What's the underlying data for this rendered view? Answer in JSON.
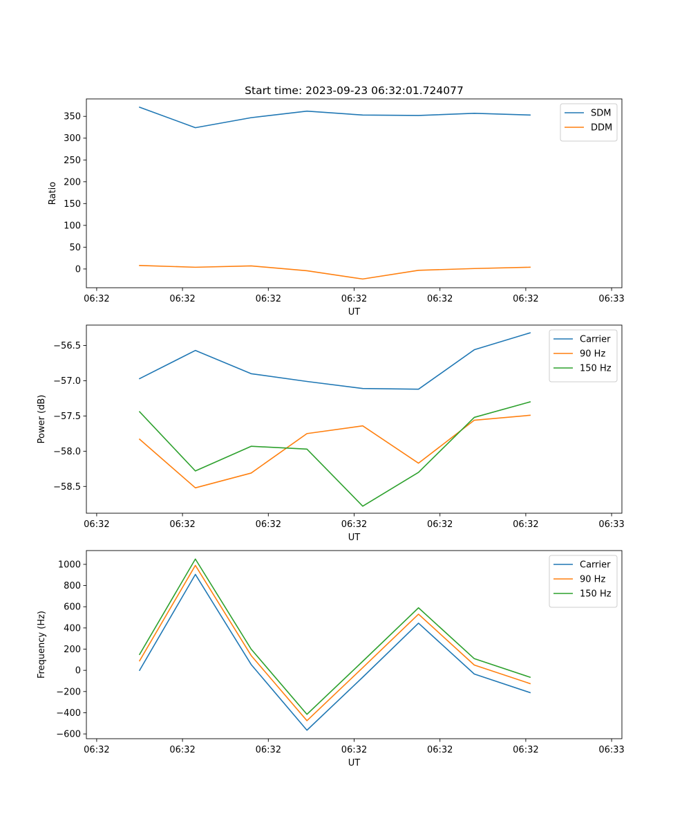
{
  "figure_title": "Start time: 2023-09-23 06:32:01.724077",
  "colors": {
    "blue": "#1f77b4",
    "orange": "#ff7f0e",
    "green": "#2ca02c"
  },
  "chart_data": [
    {
      "type": "line",
      "title": "Start time: 2023-09-23 06:32:01.724077",
      "xlabel": "UT",
      "ylabel": "Ratio",
      "legend_position": "top-right",
      "x_tick_labels": [
        "06:32",
        "06:32",
        "06:32",
        "06:32",
        "06:32",
        "06:32",
        "06:33"
      ],
      "x_ticks": [
        0,
        1,
        2,
        3,
        4,
        5,
        6
      ],
      "xlim": [
        -0.12,
        6.12
      ],
      "x": [
        0.5,
        1.15,
        1.8,
        2.45,
        3.1,
        3.75,
        4.4,
        5.05
      ],
      "ylim": [
        -43,
        390
      ],
      "y_ticks": [
        0,
        50,
        100,
        150,
        200,
        250,
        300,
        350
      ],
      "series": [
        {
          "name": "SDM",
          "color": "#1f77b4",
          "values": [
            371,
            324,
            347,
            362,
            353,
            352,
            357,
            353
          ]
        },
        {
          "name": "DDM",
          "color": "#ff7f0e",
          "values": [
            8,
            4,
            7,
            -4,
            -23,
            -3,
            1,
            4
          ]
        }
      ]
    },
    {
      "type": "line",
      "title": "",
      "xlabel": "UT",
      "ylabel": "Power (dB)",
      "legend_position": "top-right",
      "x_tick_labels": [
        "06:32",
        "06:32",
        "06:32",
        "06:32",
        "06:32",
        "06:32",
        "06:33"
      ],
      "x_ticks": [
        0,
        1,
        2,
        3,
        4,
        5,
        6
      ],
      "xlim": [
        -0.12,
        6.12
      ],
      "x": [
        0.5,
        1.15,
        1.8,
        2.45,
        3.1,
        3.75,
        4.4,
        5.05
      ],
      "ylim": [
        -58.88,
        -56.21
      ],
      "y_ticks": [
        -58.5,
        -58.0,
        -57.5,
        -57.0,
        -56.5
      ],
      "y_tick_labels": [
        "−58.5",
        "−58.0",
        "−57.5",
        "−57.0",
        "−56.5"
      ],
      "series": [
        {
          "name": "Carrier",
          "color": "#1f77b4",
          "values": [
            -56.97,
            -56.57,
            -56.9,
            -57.01,
            -57.11,
            -57.12,
            -56.56,
            -56.32
          ]
        },
        {
          "name": "90 Hz",
          "color": "#ff7f0e",
          "values": [
            -57.83,
            -58.52,
            -58.31,
            -57.75,
            -57.64,
            -58.17,
            -57.56,
            -57.49
          ]
        },
        {
          "name": "150 Hz",
          "color": "#2ca02c",
          "values": [
            -57.44,
            -58.28,
            -57.93,
            -57.97,
            -58.78,
            -58.3,
            -57.52,
            -57.3
          ]
        }
      ]
    },
    {
      "type": "line",
      "title": "",
      "xlabel": "UT",
      "ylabel": "Frequency (Hz)",
      "legend_position": "top-right",
      "x_tick_labels": [
        "06:32",
        "06:32",
        "06:32",
        "06:32",
        "06:32",
        "06:32",
        "06:33"
      ],
      "x_ticks": [
        0,
        1,
        2,
        3,
        4,
        5,
        6
      ],
      "xlim": [
        -0.12,
        6.12
      ],
      "x": [
        0.5,
        1.15,
        1.8,
        2.45,
        3.1,
        3.75,
        4.4,
        5.05
      ],
      "ylim": [
        -645,
        1130
      ],
      "y_ticks": [
        -600,
        -400,
        -200,
        0,
        200,
        400,
        600,
        800,
        1000
      ],
      "y_tick_labels": [
        "−600",
        "−400",
        "−200",
        "0",
        "200",
        "400",
        "600",
        "800",
        "1000"
      ],
      "series": [
        {
          "name": "Carrier",
          "color": "#1f77b4",
          "values": [
            0,
            905,
            55,
            -565,
            -65,
            445,
            -35,
            -210
          ]
        },
        {
          "name": "90 Hz",
          "color": "#ff7f0e",
          "values": [
            90,
            990,
            140,
            -475,
            25,
            530,
            50,
            -125
          ]
        },
        {
          "name": "150 Hz",
          "color": "#2ca02c",
          "values": [
            150,
            1050,
            200,
            -415,
            85,
            590,
            110,
            -65
          ]
        }
      ]
    }
  ]
}
